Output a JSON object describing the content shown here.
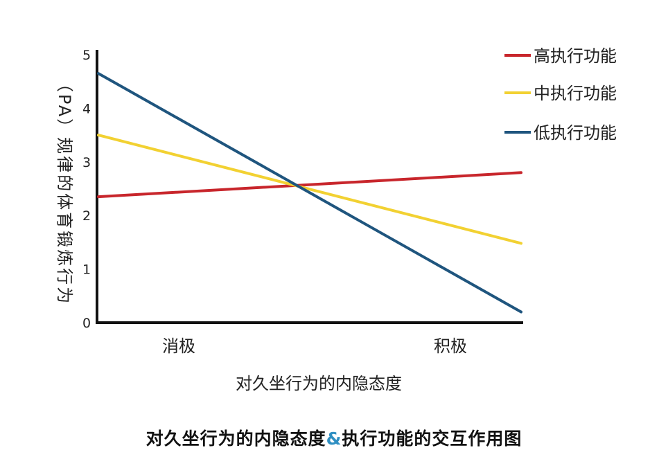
{
  "chart_data": {
    "type": "line",
    "title": "",
    "xlabel": "对久坐行为的内隐态度",
    "ylabel": "（PA）规律的体育锻炼行为",
    "categories": [
      "消极",
      "积极"
    ],
    "ylim": [
      0,
      5
    ],
    "yticks": [
      0,
      1,
      2,
      3,
      4,
      5
    ],
    "grid": false,
    "legend_position": "top-right",
    "series": [
      {
        "name": "高执行功能",
        "color": "#c8262c",
        "values": [
          2.35,
          2.8
        ]
      },
      {
        "name": "中执行功能",
        "color": "#f2d132",
        "values": [
          3.5,
          1.48
        ]
      },
      {
        "name": "低执行功能",
        "color": "#1f557e",
        "values": [
          4.65,
          0.2
        ]
      }
    ]
  },
  "caption": {
    "part1": "对久坐行为的内隐态度",
    "amp": "&",
    "part2": "执行功能的交互作用图"
  }
}
